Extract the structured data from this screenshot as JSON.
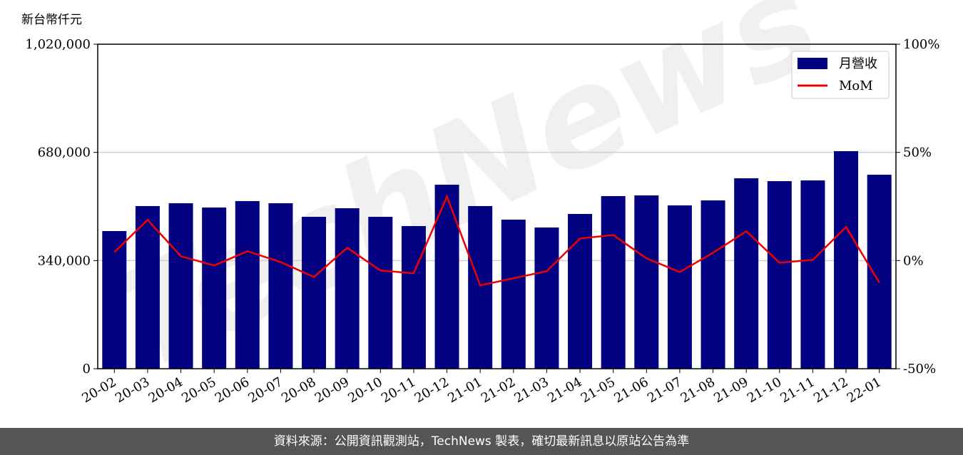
{
  "chart_data": {
    "type": "bar-line",
    "y_axis_label": "新台幣仟元",
    "watermark": "TechNews",
    "categories": [
      "20-02",
      "20-03",
      "20-04",
      "20-05",
      "20-06",
      "20-07",
      "20-08",
      "20-09",
      "20-10",
      "20-11",
      "20-12",
      "21-01",
      "21-02",
      "21-03",
      "21-04",
      "21-05",
      "21-06",
      "21-07",
      "21-08",
      "21-09",
      "21-10",
      "21-11",
      "21-12",
      "22-01"
    ],
    "series": [
      {
        "name": "月營收",
        "color": "#000080",
        "type": "bar",
        "values": [
          432700,
          511200,
          520100,
          506700,
          526900,
          520100,
          477500,
          504400,
          477500,
          448400,
          578400,
          511200,
          468600,
          443900,
          486500,
          542600,
          544800,
          513400,
          529100,
          598600,
          589600,
          591900,
          683800,
          609800
        ]
      },
      {
        "name": "MoM",
        "color": "#ee0000",
        "type": "line",
        "axis": "y2",
        "values": [
          3.9,
          18.8,
          2.0,
          -2.3,
          4.3,
          -0.7,
          -7.6,
          5.9,
          -4.6,
          -5.9,
          29.6,
          -11.5,
          -8.2,
          -4.9,
          10.2,
          11.8,
          1.0,
          -5.3,
          3.6,
          13.5,
          -1.0,
          0.3,
          15.5,
          -10.2
        ]
      }
    ],
    "ylim": [
      0,
      1020000
    ],
    "yticks": [
      0,
      {
        "value": 340000,
        "label": "340,000"
      },
      {
        "value": 680000,
        "label": "680,000"
      },
      {
        "value": 1020000,
        "label": "1,020,000"
      }
    ],
    "y2lim": [
      -50,
      100
    ],
    "y2ticks": [
      {
        "value": -50,
        "label": "-50%"
      },
      {
        "value": 0,
        "label": "0%"
      },
      {
        "value": 50,
        "label": "50%"
      },
      {
        "value": 100,
        "label": "100%"
      }
    ],
    "grid": true,
    "legend": "upper right",
    "footer": "資料來源：公開資訊觀測站，TechNews 製表，確切最新訊息以原站公告為準"
  }
}
